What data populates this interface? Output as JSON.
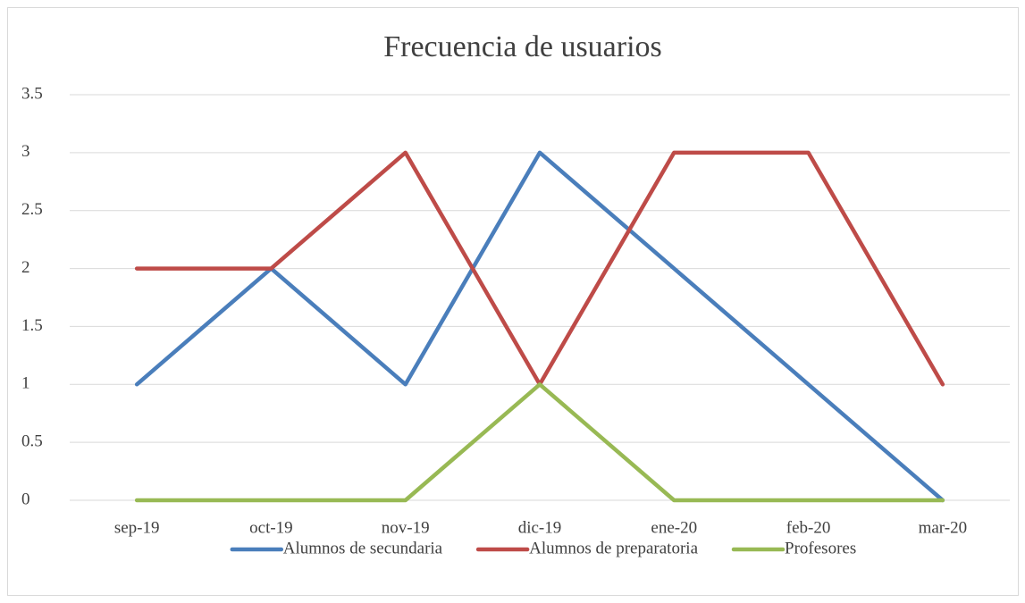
{
  "chart_data": {
    "type": "line",
    "title": "Frecuencia de usuarios",
    "categories": [
      "sep-19",
      "oct-19",
      "nov-19",
      "dic-19",
      "ene-20",
      "feb-20",
      "mar-20"
    ],
    "series": [
      {
        "name": "Alumnos de secundaria",
        "color": "#4a7ebb",
        "values": [
          1,
          2,
          1,
          3,
          2,
          1,
          0
        ]
      },
      {
        "name": "Alumnos de preparatoria",
        "color": "#be4b48",
        "values": [
          2,
          2,
          3,
          1,
          3,
          3,
          1
        ]
      },
      {
        "name": "Profesores",
        "color": "#98b954",
        "values": [
          0,
          0,
          0,
          1,
          0,
          0,
          0
        ]
      }
    ],
    "ylim": [
      0,
      3.5
    ],
    "yticks": [
      0,
      0.5,
      1,
      1.5,
      2,
      2.5,
      3,
      3.5
    ],
    "grid": true,
    "legend": "bottom"
  }
}
